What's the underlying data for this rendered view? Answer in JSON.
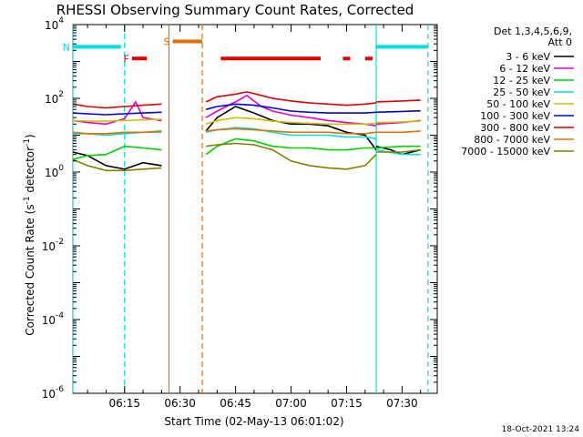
{
  "chart_data": {
    "type": "line",
    "title": "RHESSI Observing Summary Count Rates, Corrected",
    "xlabel": "Start Time (02-May-13 06:01:02)",
    "ylabel": "Corrected Count Rate (s",
    "ylabel_sup": "-1",
    "ylabel_tail": " detector",
    "ylabel_end": ")",
    "timestamp": "18-Oct-2021 13:24",
    "y_scale": "log",
    "ylim": [
      1e-06,
      10000
    ],
    "y_ticks": [
      {
        "v": 1e-06,
        "base": "10",
        "exp": "-6"
      },
      {
        "v": 0.0001,
        "base": "10",
        "exp": "-4"
      },
      {
        "v": 0.01,
        "base": "10",
        "exp": "-2"
      },
      {
        "v": 1,
        "base": "10",
        "exp": "0"
      },
      {
        "v": 100,
        "base": "10",
        "exp": "2"
      },
      {
        "v": 10000,
        "base": "10",
        "exp": "4"
      }
    ],
    "xlim": [
      "06:01:02",
      "07:39:30"
    ],
    "x_ticks": [
      "06:15",
      "06:30",
      "06:45",
      "07:00",
      "07:15",
      "07:30"
    ],
    "legend_header": [
      "Det 1,3,4,5,6,9,",
      "Att 0"
    ],
    "legend_position": "top-right",
    "series": [
      {
        "name": "3 - 6 keV",
        "color": "#000000",
        "segments": [
          {
            "t": [
              "06:01",
              "06:05",
              "06:10",
              "06:15",
              "06:20",
              "06:25"
            ],
            "v": [
              3.5,
              2.8,
              1.5,
              1.2,
              1.8,
              1.5
            ]
          },
          {
            "t": [
              "06:37",
              "06:40",
              "06:45",
              "06:50",
              "06:55",
              "07:00",
              "07:05",
              "07:10",
              "07:15",
              "07:20",
              "07:23"
            ],
            "v": [
              13,
              30,
              60,
              40,
              25,
              20,
              20,
              18,
              12,
              10,
              4
            ]
          },
          {
            "t": [
              "07:23",
              "07:27",
              "07:30",
              "07:35"
            ],
            "v": [
              5,
              4,
              3,
              4
            ]
          }
        ]
      },
      {
        "name": "6 - 12 keV",
        "color": "#e000e0",
        "segments": [
          {
            "t": [
              "06:01",
              "06:05",
              "06:10",
              "06:15",
              "06:18",
              "06:20",
              "06:25"
            ],
            "v": [
              25,
              22,
              20,
              28,
              80,
              30,
              25
            ]
          },
          {
            "t": [
              "06:37",
              "06:40",
              "06:45",
              "06:48",
              "06:52",
              "06:55",
              "07:00",
              "07:05",
              "07:10",
              "07:15",
              "07:20",
              "07:23"
            ],
            "v": [
              30,
              45,
              80,
              120,
              60,
              45,
              35,
              30,
              25,
              22,
              20,
              18
            ]
          },
          {
            "t": [
              "07:23",
              "07:30",
              "07:35"
            ],
            "v": [
              20,
              22,
              25
            ]
          }
        ]
      },
      {
        "name": "12 - 25 keV",
        "color": "#00d000",
        "segments": [
          {
            "t": [
              "06:01",
              "06:05",
              "06:10",
              "06:15",
              "06:20",
              "06:25"
            ],
            "v": [
              2.2,
              2.8,
              3.0,
              5.0,
              4.5,
              4.0
            ]
          },
          {
            "t": [
              "06:37",
              "06:40",
              "06:45",
              "06:50",
              "06:55",
              "07:00",
              "07:05",
              "07:10",
              "07:15",
              "07:20",
              "07:23"
            ],
            "v": [
              3.0,
              5.0,
              8.0,
              7.0,
              5.0,
              4.5,
              4.5,
              4.0,
              4.0,
              4.5,
              4.5
            ]
          },
          {
            "t": [
              "07:23",
              "07:30",
              "07:35"
            ],
            "v": [
              4.5,
              5.0,
              5.0
            ]
          }
        ]
      },
      {
        "name": "25 - 50 keV",
        "color": "#00e0e0",
        "segments": [
          {
            "t": [
              "06:01",
              "06:05",
              "06:10",
              "06:15",
              "06:20",
              "06:25"
            ],
            "v": [
              11,
              11,
              10,
              11,
              12,
              12
            ]
          },
          {
            "t": [
              "06:37",
              "06:40",
              "06:45",
              "06:50",
              "06:55",
              "07:00",
              "07:05",
              "07:10",
              "07:15",
              "07:20",
              "07:23"
            ],
            "v": [
              12,
              14,
              16,
              15,
              12,
              10,
              10,
              10,
              9,
              9,
              8
            ]
          },
          {
            "t": [
              "07:23",
              "07:30",
              "07:35"
            ],
            "v": [
              4,
              3,
              3
            ]
          }
        ]
      },
      {
        "name": "50 - 100 keV",
        "color": "#d0c000",
        "segments": [
          {
            "t": [
              "06:01",
              "06:05",
              "06:10",
              "06:15",
              "06:20",
              "06:25"
            ],
            "v": [
              25,
              24,
              24,
              25,
              26,
              27
            ]
          },
          {
            "t": [
              "06:37",
              "06:40",
              "06:45",
              "06:50",
              "06:55",
              "07:00",
              "07:05",
              "07:10",
              "07:15",
              "07:20",
              "07:23"
            ],
            "v": [
              20,
              25,
              30,
              28,
              24,
              22,
              21,
              20,
              20,
              20,
              21
            ]
          },
          {
            "t": [
              "07:23",
              "07:30",
              "07:35"
            ],
            "v": [
              22,
              23,
              24
            ]
          }
        ]
      },
      {
        "name": "100 - 300 keV",
        "color": "#0000e0",
        "segments": [
          {
            "t": [
              "06:01",
              "06:05",
              "06:10",
              "06:15",
              "06:20",
              "06:25"
            ],
            "v": [
              40,
              38,
              36,
              38,
              40,
              42
            ]
          },
          {
            "t": [
              "06:37",
              "06:40",
              "06:45",
              "06:50",
              "06:55",
              "07:00",
              "07:05",
              "07:10",
              "07:15",
              "07:20",
              "07:23"
            ],
            "v": [
              50,
              60,
              70,
              65,
              55,
              45,
              42,
              40,
              40,
              40,
              42
            ]
          },
          {
            "t": [
              "07:23",
              "07:30",
              "07:35"
            ],
            "v": [
              42,
              44,
              46
            ]
          }
        ]
      },
      {
        "name": "300 - 800 keV",
        "color": "#e00000",
        "segments": [
          {
            "t": [
              "06:01",
              "06:05",
              "06:10",
              "06:15",
              "06:20",
              "06:25"
            ],
            "v": [
              70,
              60,
              55,
              60,
              65,
              70
            ]
          },
          {
            "t": [
              "06:37",
              "06:40",
              "06:45",
              "06:48",
              "06:52",
              "06:55",
              "07:00",
              "07:05",
              "07:10",
              "07:15",
              "07:20",
              "07:23"
            ],
            "v": [
              80,
              110,
              130,
              150,
              120,
              100,
              85,
              75,
              70,
              65,
              70,
              75
            ]
          },
          {
            "t": [
              "07:23",
              "07:30",
              "07:35"
            ],
            "v": [
              80,
              85,
              90
            ]
          }
        ]
      },
      {
        "name": "800 - 7000 keV",
        "color": "#e07000",
        "segments": [
          {
            "t": [
              "06:01",
              "06:05",
              "06:10",
              "06:15",
              "06:20",
              "06:25"
            ],
            "v": [
              12,
              11,
              11,
              12,
              12,
              13
            ]
          },
          {
            "t": [
              "06:37",
              "06:40",
              "06:45",
              "06:50",
              "06:55",
              "07:00",
              "07:05",
              "07:10",
              "07:15",
              "07:20",
              "07:23"
            ],
            "v": [
              13,
              14,
              15,
              14,
              13,
              12,
              12,
              12,
              11,
              11,
              12
            ]
          },
          {
            "t": [
              "07:23",
              "07:30",
              "07:35"
            ],
            "v": [
              12,
              12,
              13
            ]
          }
        ]
      },
      {
        "name": "7000 - 15000 keV",
        "color": "#808000",
        "segments": [
          {
            "t": [
              "06:01",
              "06:05",
              "06:10",
              "06:15",
              "06:20",
              "06:25"
            ],
            "v": [
              2.2,
              1.5,
              1.1,
              1.1,
              1.2,
              1.3
            ]
          },
          {
            "t": [
              "06:37",
              "06:40",
              "06:45",
              "06:50",
              "06:55",
              "07:00",
              "07:05",
              "07:10",
              "07:15",
              "07:20",
              "07:23"
            ],
            "v": [
              5,
              5.5,
              6,
              5.5,
              4,
              2,
              1.5,
              1.3,
              1.2,
              1.5,
              3
            ]
          },
          {
            "t": [
              "07:23",
              "07:30",
              "07:35"
            ],
            "v": [
              3.5,
              3.5,
              4
            ]
          }
        ]
      }
    ],
    "flag_bars": [
      {
        "label": "N",
        "color": "#00e0e0",
        "level": 2500,
        "t": [
          "06:01",
          "06:14"
        ]
      },
      {
        "label": "",
        "color": "#00e0e0",
        "level": 2500,
        "t": [
          "07:23",
          "07:37"
        ]
      },
      {
        "label": "S",
        "color": "#e07000",
        "level": 3500,
        "t": [
          "06:28",
          "06:36"
        ]
      },
      {
        "label": "F",
        "color": "#e00000",
        "level": 1200,
        "t": [
          "06:17",
          "06:21"
        ]
      },
      {
        "label": "",
        "color": "#e00000",
        "level": 1200,
        "t": [
          "06:41",
          "07:08"
        ]
      },
      {
        "label": "",
        "color": "#e00000",
        "level": 1200,
        "t": [
          "07:14",
          "07:16"
        ]
      },
      {
        "label": "",
        "color": "#e00000",
        "level": 1200,
        "t": [
          "07:20",
          "07:22"
        ]
      }
    ],
    "vertical_markers": [
      {
        "t": "06:01",
        "color": "#00e0e0",
        "style": "solid"
      },
      {
        "t": "06:15",
        "color": "#00e0e0",
        "style": "dashed"
      },
      {
        "t": "06:27",
        "color": "#e07000",
        "style": "solid"
      },
      {
        "t": "06:36",
        "color": "#e07000",
        "style": "dashed"
      },
      {
        "t": "07:23",
        "color": "#00e0e0",
        "style": "solid"
      },
      {
        "t": "07:37",
        "color": "#00e0e0",
        "style": "dashed"
      }
    ]
  }
}
